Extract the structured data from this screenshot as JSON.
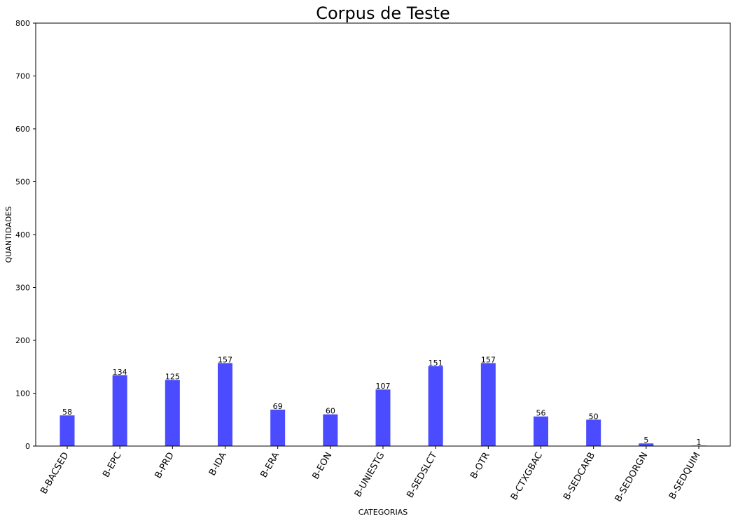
{
  "chart_data": {
    "type": "bar",
    "title": "Corpus de Teste",
    "xlabel": "CATEGORIAS",
    "ylabel": "QUANTIDADES",
    "ylim": [
      0,
      800
    ],
    "yticks": [
      0,
      100,
      200,
      300,
      400,
      500,
      600,
      700,
      800
    ],
    "categories": [
      "B-BACSED",
      "B-EPC",
      "B-PRD",
      "B-IDA",
      "B-ERA",
      "B-EON",
      "B-UNIESTG",
      "B-SEDSLCT",
      "B-OTR",
      "B-CTXGBAC",
      "B-SEDCARB",
      "B-SEDORGN",
      "B-SEDQUIM"
    ],
    "values": [
      58,
      134,
      125,
      157,
      69,
      60,
      107,
      151,
      157,
      56,
      50,
      5,
      1
    ],
    "bar_color": "#4b4bff",
    "grid": false,
    "legend": "none"
  }
}
